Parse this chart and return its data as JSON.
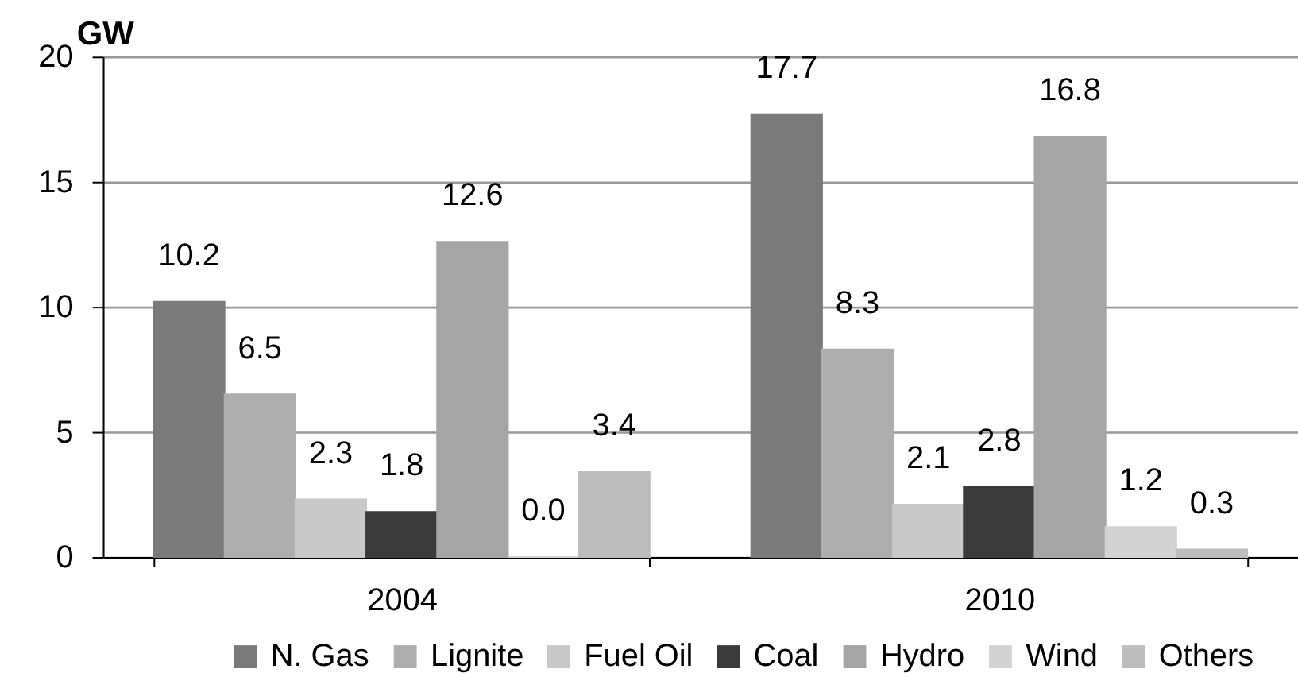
{
  "chart_data": {
    "type": "bar",
    "ylabel": "GW",
    "categories": [
      "2004",
      "2010"
    ],
    "series": [
      {
        "name": "N. Gas",
        "color": "#7a7a7a",
        "values": [
          10.2,
          17.7
        ],
        "value_labels": [
          "10.2",
          "17.7"
        ]
      },
      {
        "name": "Lignite",
        "color": "#aeaeae",
        "values": [
          6.5,
          8.3
        ],
        "value_labels": [
          "6.5",
          "8.3"
        ]
      },
      {
        "name": "Fuel Oil",
        "color": "#c8c8c8",
        "values": [
          2.3,
          2.1
        ],
        "value_labels": [
          "2.3",
          "2.1"
        ]
      },
      {
        "name": "Coal",
        "color": "#3b3b3b",
        "values": [
          1.8,
          2.8
        ],
        "value_labels": [
          "1.8",
          "2.8"
        ]
      },
      {
        "name": "Hydro",
        "color": "#a5a5a5",
        "values": [
          12.6,
          16.8
        ],
        "value_labels": [
          "12.6",
          "16.8"
        ]
      },
      {
        "name": "Wind",
        "color": "#d3d3d3",
        "values": [
          0.0,
          1.2
        ],
        "value_labels": [
          "0.0",
          "1.2"
        ]
      },
      {
        "name": "Others",
        "color": "#bdbdbd",
        "values": [
          3.4,
          0.3
        ],
        "value_labels": [
          "3.4",
          "0.3"
        ]
      }
    ],
    "ylim": [
      0,
      20
    ],
    "yticks": [
      0,
      5,
      10,
      15,
      20
    ],
    "grid": "y",
    "legend": "bottom"
  }
}
